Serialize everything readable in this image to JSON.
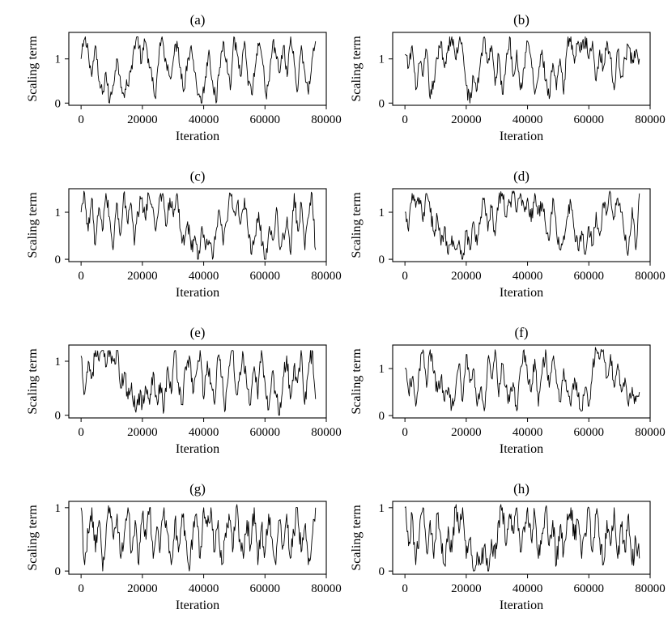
{
  "figure": {
    "panels": [
      {
        "label": "(a)",
        "ylabel": "Scaling term",
        "xlabel": "Iteration"
      },
      {
        "label": "(b)",
        "ylabel": "Scaling term",
        "xlabel": "Iteration"
      },
      {
        "label": "(c)",
        "ylabel": "Scaling term",
        "xlabel": "Iteration"
      },
      {
        "label": "(d)",
        "ylabel": "Scaling term",
        "xlabel": "Iteration"
      },
      {
        "label": "(e)",
        "ylabel": "Scaling term",
        "xlabel": "Iteration"
      },
      {
        "label": "(f)",
        "ylabel": "Scaling term",
        "xlabel": "Iteration"
      },
      {
        "label": "(g)",
        "ylabel": "Scaling term",
        "xlabel": "Iteration"
      },
      {
        "label": "(h)",
        "ylabel": "Scaling term",
        "xlabel": "Iteration"
      }
    ]
  },
  "chart_data": [
    {
      "type": "line",
      "title": "(a)",
      "xlabel": "Iteration",
      "ylabel": "Scaling term",
      "xlim": [
        -4000,
        80000
      ],
      "ylim": [
        -0.05,
        1.6
      ],
      "xticks": [
        0,
        20000,
        40000,
        60000,
        80000
      ],
      "yticks": [
        0,
        1
      ],
      "grid": false,
      "color": "#000000",
      "series": [
        {
          "x_start": 0,
          "x_end": 76500,
          "range": [
            0.0,
            1.5
          ],
          "values": [
            1.0,
            1.45,
            1.2,
            0.6,
            1.3,
            0.5,
            0.2,
            0.7,
            0.0,
            0.4,
            1.0,
            0.6,
            0.2,
            0.4,
            0.7,
            1.3,
            1.5,
            0.9,
            1.4,
            1.0,
            0.5,
            0.1,
            1.2,
            1.4,
            0.9,
            0.6,
            1.0,
            1.4,
            0.8,
            0.3,
            1.0,
            1.3,
            0.7,
            0.2,
            0.0,
            0.6,
            1.2,
            0.5,
            0.0,
            0.8,
            1.4,
            1.0,
            0.3,
            1.5,
            1.1,
            0.6,
            1.4,
            0.4,
            0.2,
            0.8,
            1.3,
            1.0,
            0.2,
            0.5,
            1.4,
            1.0,
            0.7,
            1.3,
            0.6,
            1.5,
            0.9,
            0.3,
            1.3,
            0.7,
            0.2,
            1.0,
            1.4
          ]
        }
      ]
    },
    {
      "type": "line",
      "title": "(b)",
      "xlabel": "Iteration",
      "ylabel": "Scaling term",
      "xlim": [
        -4000,
        80000
      ],
      "ylim": [
        -0.05,
        1.6
      ],
      "xticks": [
        0,
        20000,
        40000,
        60000,
        80000
      ],
      "yticks": [
        0,
        1
      ],
      "grid": false,
      "color": "#000000",
      "series": [
        {
          "x_start": 0,
          "x_end": 76500,
          "range": [
            0.0,
            1.5
          ],
          "values": [
            1.1,
            0.8,
            1.3,
            0.3,
            0.9,
            0.6,
            1.2,
            0.1,
            0.5,
            1.0,
            1.4,
            0.8,
            1.3,
            1.5,
            1.0,
            1.4,
            1.2,
            0.4,
            0.0,
            0.6,
            0.3,
            1.0,
            1.5,
            0.9,
            1.3,
            0.4,
            1.1,
            0.2,
            0.9,
            1.5,
            0.6,
            1.2,
            0.3,
            0.8,
            1.4,
            1.0,
            0.2,
            0.6,
            1.2,
            0.5,
            0.1,
            0.9,
            0.3,
            1.0,
            0.2,
            1.3,
            1.5,
            0.9,
            1.4,
            1.2,
            1.5,
            1.0,
            1.4,
            0.5,
            1.2,
            0.8,
            1.4,
            1.0,
            0.3,
            1.2,
            0.6,
            1.0,
            1.3,
            0.9,
            1.2,
            1.0
          ]
        }
      ]
    },
    {
      "type": "line",
      "title": "(c)",
      "xlabel": "Iteration",
      "ylabel": "Scaling term",
      "xlim": [
        -4000,
        80000
      ],
      "ylim": [
        -0.05,
        1.5
      ],
      "xticks": [
        0,
        20000,
        40000,
        60000,
        80000
      ],
      "yticks": [
        0,
        1
      ],
      "grid": false,
      "color": "#000000",
      "series": [
        {
          "x_start": 0,
          "x_end": 76500,
          "range": [
            0.0,
            1.45
          ],
          "values": [
            1.0,
            1.4,
            0.6,
            1.3,
            0.3,
            1.1,
            0.6,
            1.4,
            0.9,
            0.2,
            1.2,
            0.5,
            1.4,
            0.8,
            1.2,
            0.3,
            1.0,
            1.3,
            0.9,
            1.4,
            1.1,
            0.6,
            1.3,
            1.4,
            0.7,
            1.3,
            0.9,
            1.4,
            0.6,
            0.3,
            0.8,
            0.2,
            0.5,
            0.0,
            0.7,
            0.2,
            0.4,
            0.0,
            0.6,
            1.0,
            0.3,
            0.8,
            1.4,
            1.0,
            1.2,
            0.8,
            1.3,
            0.6,
            0.1,
            0.5,
            1.0,
            0.3,
            0.0,
            0.7,
            0.4,
            1.1,
            0.2,
            0.5,
            0.9,
            0.1,
            1.4,
            0.6,
            1.2,
            0.2,
            0.9,
            1.4,
            0.2
          ]
        }
      ]
    },
    {
      "type": "line",
      "title": "(d)",
      "xlabel": "Iteration",
      "ylabel": "Scaling term",
      "xlim": [
        -4000,
        80000
      ],
      "ylim": [
        -0.05,
        1.5
      ],
      "xticks": [
        0,
        20000,
        40000,
        60000,
        80000
      ],
      "yticks": [
        0,
        1
      ],
      "grid": false,
      "color": "#000000",
      "series": [
        {
          "x_start": 0,
          "x_end": 76500,
          "range": [
            0.0,
            1.45
          ],
          "values": [
            1.0,
            0.6,
            1.4,
            1.1,
            1.3,
            0.8,
            1.4,
            1.0,
            0.6,
            0.9,
            0.3,
            0.7,
            0.1,
            0.5,
            0.2,
            0.4,
            0.0,
            0.6,
            0.2,
            0.8,
            0.3,
            0.9,
            1.3,
            0.6,
            1.1,
            0.5,
            1.3,
            1.4,
            0.9,
            1.2,
            1.4,
            1.0,
            1.4,
            1.1,
            1.3,
            0.8,
            1.4,
            1.0,
            1.2,
            0.7,
            0.4,
            1.3,
            0.6,
            0.2,
            0.5,
            0.9,
            1.2,
            0.6,
            0.2,
            0.6,
            0.1,
            0.7,
            0.3,
            1.0,
            0.5,
            1.2,
            1.0,
            1.4,
            0.9,
            1.3,
            1.0,
            0.4,
            0.2,
            1.1,
            0.2,
            1.4
          ]
        }
      ]
    },
    {
      "type": "line",
      "title": "(e)",
      "xlabel": "Iteration",
      "ylabel": "Scaling term",
      "xlim": [
        -4000,
        80000
      ],
      "ylim": [
        -0.05,
        1.3
      ],
      "xticks": [
        0,
        20000,
        40000,
        60000,
        80000
      ],
      "yticks": [
        0,
        1
      ],
      "grid": false,
      "color": "#000000",
      "series": [
        {
          "x_start": 0,
          "x_end": 76500,
          "range": [
            0.0,
            1.2
          ],
          "values": [
            1.1,
            0.4,
            1.0,
            0.7,
            1.2,
            1.0,
            1.2,
            0.9,
            1.2,
            1.0,
            1.2,
            0.5,
            0.8,
            0.3,
            0.6,
            0.1,
            0.4,
            0.2,
            0.5,
            0.2,
            0.8,
            0.3,
            0.6,
            0.1,
            0.9,
            0.4,
            1.2,
            0.6,
            0.2,
            0.9,
            1.1,
            0.4,
            0.8,
            1.2,
            0.3,
            1.0,
            0.6,
            0.2,
            1.1,
            0.7,
            0.1,
            0.9,
            1.2,
            0.4,
            0.8,
            1.1,
            0.5,
            0.2,
            0.9,
            0.3,
            1.2,
            0.6,
            0.1,
            0.8,
            0.4,
            0.0,
            0.7,
            1.1,
            0.3,
            0.9,
            0.6,
            1.2,
            0.2,
            0.8,
            1.2,
            0.3
          ]
        }
      ]
    },
    {
      "type": "line",
      "title": "(f)",
      "xlabel": "Iteration",
      "ylabel": "Scaling term",
      "xlim": [
        -4000,
        80000
      ],
      "ylim": [
        -0.05,
        1.5
      ],
      "xticks": [
        0,
        20000,
        40000,
        60000,
        80000
      ],
      "yticks": [
        0,
        1
      ],
      "grid": false,
      "color": "#000000",
      "series": [
        {
          "x_start": 0,
          "x_end": 76500,
          "range": [
            0.0,
            1.45
          ],
          "values": [
            1.0,
            0.5,
            0.8,
            0.2,
            1.0,
            1.4,
            0.6,
            1.4,
            0.9,
            0.5,
            0.8,
            0.3,
            0.6,
            0.2,
            0.5,
            1.1,
            0.3,
            1.3,
            0.7,
            1.0,
            0.2,
            0.6,
            0.1,
            1.2,
            0.8,
            1.4,
            0.4,
            1.1,
            0.6,
            0.3,
            0.7,
            0.1,
            1.0,
            1.4,
            0.8,
            0.5,
            1.2,
            0.2,
            0.9,
            1.4,
            0.6,
            1.2,
            0.7,
            0.3,
            1.0,
            0.5,
            0.2,
            0.8,
            0.4,
            0.1,
            0.6,
            0.2,
            1.0,
            1.4,
            1.2,
            1.4,
            0.8,
            1.3,
            0.6,
            1.1,
            0.5,
            0.8,
            0.2,
            0.6,
            0.3,
            0.5
          ]
        }
      ]
    },
    {
      "type": "line",
      "title": "(g)",
      "xlabel": "Iteration",
      "ylabel": "Scaling term",
      "xlim": [
        -4000,
        80000
      ],
      "ylim": [
        -0.05,
        1.1
      ],
      "xticks": [
        0,
        20000,
        40000,
        60000,
        80000
      ],
      "yticks": [
        0,
        1
      ],
      "grid": false,
      "color": "#000000",
      "series": [
        {
          "x_start": 0,
          "x_end": 76500,
          "range": [
            0.0,
            1.05
          ],
          "values": [
            1.0,
            0.1,
            0.6,
            1.0,
            0.3,
            0.8,
            0.0,
            0.7,
            1.0,
            0.5,
            0.9,
            0.2,
            0.6,
            1.0,
            0.3,
            0.8,
            0.1,
            0.9,
            0.5,
            1.0,
            0.2,
            0.7,
            0.4,
            1.0,
            0.6,
            0.1,
            0.8,
            0.3,
            0.9,
            0.5,
            0.0,
            0.6,
            0.9,
            0.2,
            1.0,
            0.7,
            1.0,
            0.3,
            0.8,
            0.1,
            0.6,
            0.9,
            0.3,
            1.0,
            0.5,
            0.2,
            0.8,
            0.4,
            1.0,
            0.1,
            0.7,
            0.3,
            0.9,
            0.5,
            0.1,
            0.8,
            0.4,
            0.9,
            0.2,
            0.6,
            1.0,
            0.3,
            0.7,
            0.1,
            0.5,
            1.0
          ]
        }
      ]
    },
    {
      "type": "line",
      "title": "(h)",
      "xlabel": "Iteration",
      "ylabel": "Scaling term",
      "xlim": [
        -4000,
        80000
      ],
      "ylim": [
        -0.05,
        1.1
      ],
      "xticks": [
        0,
        20000,
        40000,
        60000,
        80000
      ],
      "yticks": [
        0,
        1
      ],
      "grid": false,
      "color": "#000000",
      "series": [
        {
          "x_start": 0,
          "x_end": 76500,
          "range": [
            0.0,
            1.05
          ],
          "values": [
            1.0,
            0.4,
            0.9,
            0.1,
            0.6,
            1.0,
            0.3,
            0.8,
            0.2,
            0.9,
            0.5,
            0.1,
            0.7,
            0.3,
            1.0,
            0.6,
            1.0,
            0.2,
            0.5,
            0.0,
            0.3,
            0.1,
            0.4,
            0.0,
            0.5,
            0.2,
            0.8,
            1.0,
            0.4,
            0.9,
            0.6,
            1.0,
            0.3,
            0.7,
            1.0,
            0.5,
            0.9,
            0.2,
            0.6,
            1.0,
            0.4,
            0.8,
            0.1,
            0.7,
            0.3,
            0.9,
            1.0,
            0.5,
            0.8,
            0.2,
            0.6,
            1.0,
            0.3,
            0.9,
            0.5,
            0.1,
            0.8,
            0.4,
            1.0,
            0.2,
            0.7,
            0.3,
            0.9,
            0.1,
            0.5,
            0.2
          ]
        }
      ]
    }
  ]
}
